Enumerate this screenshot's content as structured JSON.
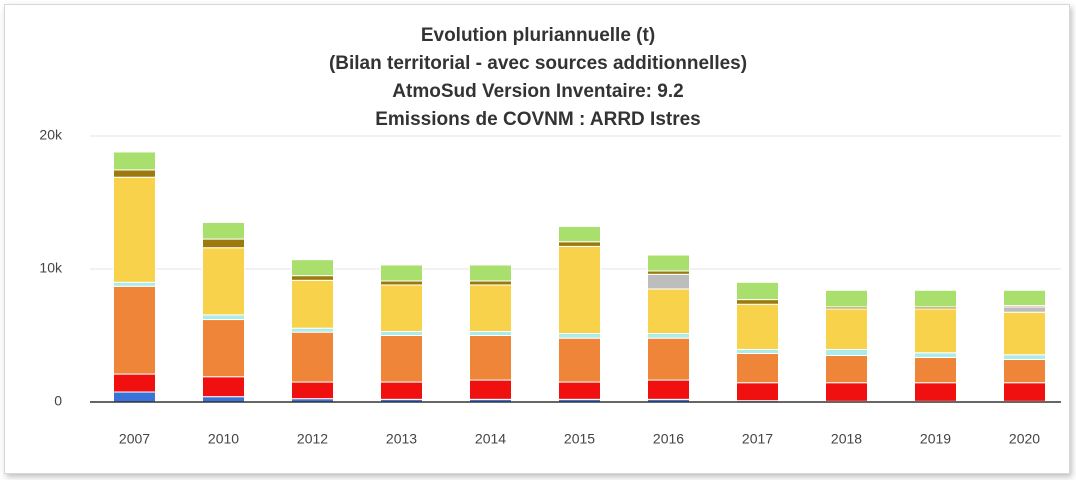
{
  "chart_data": {
    "type": "stacked_bar",
    "title": [
      "Evolution pluriannuelle (t)",
      "(Bilan territorial - avec sources additionnelles)",
      "AtmoSud Version Inventaire: 9.2",
      "Emissions de COVNM : ARRD Istres"
    ],
    "categories": [
      "2007",
      "2010",
      "2012",
      "2013",
      "2014",
      "2015",
      "2016",
      "2017",
      "2018",
      "2019",
      "2020"
    ],
    "ylim": [
      0,
      20000
    ],
    "yticks": [
      0,
      {
        "value": 10000,
        "label": "10k"
      },
      {
        "value": 20000,
        "label": "20k"
      }
    ],
    "grid": true,
    "series": [
      {
        "color": "#3a72d8",
        "values": [
          750,
          400,
          250,
          200,
          200,
          200,
          200,
          100,
          50,
          50,
          50
        ]
      },
      {
        "color": "#f01010",
        "values": [
          1350,
          1500,
          1250,
          1300,
          1450,
          1300,
          1450,
          1350,
          1400,
          1400,
          1400
        ]
      },
      {
        "color": "#ef8538",
        "values": [
          6600,
          4300,
          3750,
          3500,
          3350,
          3300,
          3150,
          2200,
          2050,
          1900,
          1750
        ]
      },
      {
        "color": "#a8ecec",
        "values": [
          300,
          350,
          300,
          300,
          300,
          350,
          350,
          300,
          450,
          350,
          350
        ]
      },
      {
        "color": "#f8d24a",
        "values": [
          7900,
          5050,
          3600,
          3500,
          3500,
          6550,
          3350,
          3400,
          3050,
          3300,
          3200
        ]
      },
      {
        "color": "#bdbdbd",
        "values": [
          0,
          0,
          0,
          0,
          0,
          0,
          1100,
          0,
          0,
          0,
          400
        ]
      },
      {
        "color": "#9c7a0e",
        "values": [
          550,
          650,
          350,
          300,
          300,
          350,
          250,
          350,
          150,
          150,
          100
        ]
      },
      {
        "color": "#a9df6c",
        "values": [
          1350,
          1250,
          1200,
          1200,
          1200,
          1150,
          1200,
          1300,
          1250,
          1250,
          1150
        ]
      }
    ]
  }
}
